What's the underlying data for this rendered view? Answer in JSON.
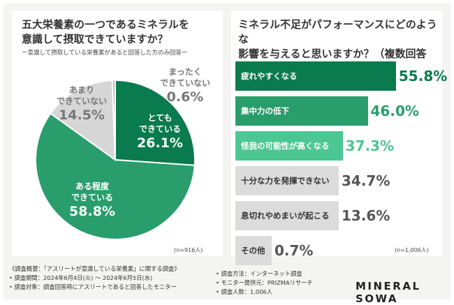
{
  "left": {
    "title": "五大栄養素の一つであるミネラルを\n意識して摂取できていますか？",
    "subtitle": "ー意識して摂取している栄養素があると回答した方のみ回答ー",
    "n_note": "(n=916人)"
  },
  "right": {
    "title": "ミネラル不足がパフォーマンスにどのような\n影響を与えると思いますか？（複数回答可）",
    "n_note": "(n=1,006人)"
  },
  "footer": {
    "lines_left": [
      "《調査概要：「アスリートが意識している栄養素」に関する調査》",
      "• 調査期間：2024年6月4日(火) ～ 2024年6月5日(水)",
      "• 調査対象：調査回答時にアスリートであると回答したモニター"
    ],
    "lines_right": [
      "• 調査方法：インターネット調査",
      "• モニター提供元：PRIZMAリサーチ",
      "• 調査人数：1,006人"
    ],
    "brand": "MINERAL SOWA"
  },
  "chart_data": [
    {
      "type": "pie",
      "title": "五大栄養素の一つであるミネラルを意識して摂取できていますか？",
      "slices": [
        {
          "label": "とても\nできている",
          "value": 26.1,
          "display": "26.1%",
          "color": "#0a7a4f"
        },
        {
          "label": "ある程度\nできている",
          "value": 58.8,
          "display": "58.8%",
          "color": "#2a9d6c"
        },
        {
          "label": "あまり\nできていない",
          "value": 14.5,
          "display": "14.5%",
          "color": "#d6d6d6"
        },
        {
          "label": "まったく\nできていない",
          "value": 0.6,
          "display": "0.6%",
          "color": "#bbbbbb"
        }
      ]
    },
    {
      "type": "bar",
      "orientation": "horizontal",
      "title": "ミネラル不足がパフォーマンスにどのような影響を与えると思いますか？（複数回答可）",
      "xlim": [
        0,
        100
      ],
      "categories": [
        "疲れやすくなる",
        "集中力の低下",
        "怪我の可能性が高くなる",
        "十分な力を発揮できない",
        "息切れやめまいが起こる",
        "その他"
      ],
      "values": [
        55.8,
        46.0,
        37.3,
        34.7,
        13.6,
        0.7
      ],
      "display": [
        "55.8%",
        "46.0%",
        "37.3%",
        "34.7%",
        "13.6%",
        "0.7%"
      ],
      "colors": [
        "#0a7a4f",
        "#2a9d6c",
        "#4cc793",
        "#dcdcdc",
        "#dcdcdc",
        "#dcdcdc"
      ],
      "label_colors": [
        "#ffffff",
        "#ffffff",
        "#ffffff",
        "#333333",
        "#333333",
        "#333333"
      ],
      "value_colors": [
        "#0a7a4f",
        "#2a9d6c",
        "#4cc793",
        "#555555",
        "#555555",
        "#555555"
      ]
    }
  ]
}
